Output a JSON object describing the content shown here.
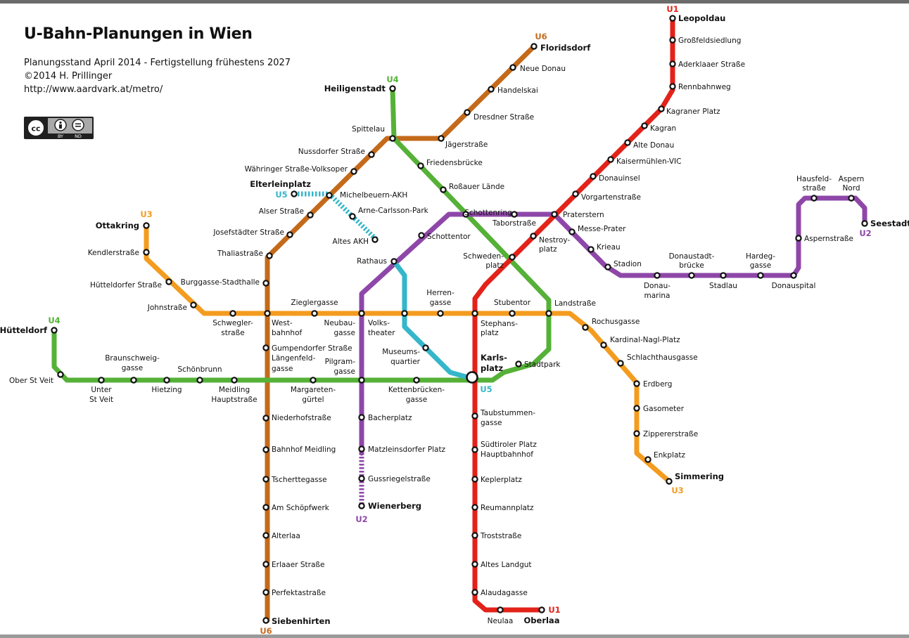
{
  "title": "U-Bahn-Planungen in Wien",
  "info_lines": [
    "Planungsstand April 2014 - Fertigstellung frühestens 2027",
    "©2014 H. Prillinger",
    "http://www.aardvark.at/metro/"
  ],
  "license": {
    "badge": [
      "cc",
      "by",
      "nd"
    ],
    "small_labels": [
      "BY",
      "ND"
    ]
  },
  "colors": {
    "U1": "#e32219",
    "U2": "#8e47a8",
    "U3": "#f39c1f",
    "U4": "#55b137",
    "U5": "#35b6c9",
    "U6": "#c46a1b"
  },
  "lines": [
    {
      "id": "U1",
      "stations": [
        "Leopoldau",
        "Großfeldsiedlung",
        "Aderklaaer Straße",
        "Rennbahnweg",
        "Kagraner Platz",
        "Kagran",
        "Alte Donau",
        "Kaisermühlen-VIC",
        "Donauinsel",
        "Vorgartenstraße",
        "Praterstern",
        "Nestroyplatz",
        "Schwedenplatz",
        "Stephansplatz",
        "Karlsplatz",
        "Taubstummengasse",
        "Südtiroler Platz Hauptbahnhof",
        "Keplerplatz",
        "Reumannplatz",
        "Troststraße",
        "Altes Landgut",
        "Alaudagasse",
        "Neulaa",
        "Oberlaa"
      ]
    },
    {
      "id": "U2",
      "stations": [
        "Seestadt",
        "Aspern Nord",
        "Hausfeldstraße",
        "Aspernstraße",
        "Donauspital",
        "Hardeggasse",
        "Stadlau",
        "Donaustadtbrücke",
        "Donaumarina",
        "Stadion",
        "Krieau",
        "Messe-Prater",
        "Praterstern",
        "Taborstraße",
        "Schottenring",
        "Schottentor",
        "Rathaus",
        "Volkstheater",
        "Neubaugasse",
        "Pilgramgasse",
        "Bacherplatz",
        "Matzleinsdorfer Platz",
        "Gussriegelstraße",
        "Wienerberg"
      ]
    },
    {
      "id": "U3",
      "stations": [
        "Ottakring",
        "Kendlerstraße",
        "Hütteldorfer Straße",
        "Johnstraße",
        "Schweglerstraße",
        "Westbahnhof",
        "Zieglergasse",
        "Neubaugasse",
        "Volkstheater",
        "Herrengasse",
        "Stephansplatz",
        "Stubentor",
        "Landstraße",
        "Rochusgasse",
        "Kardinal-Nagl-Platz",
        "Schlachthausgasse",
        "Erdberg",
        "Gasometer",
        "Zippererstraße",
        "Enkplatz",
        "Simmering"
      ]
    },
    {
      "id": "U4",
      "stations": [
        "Hütteldorf",
        "Ober St Veit",
        "Unter St Veit",
        "Braunschweiggasse",
        "Hietzing",
        "Schönbrunn",
        "Meidling Hauptstraße",
        "Längenfeldgasse",
        "Margaretengürtel",
        "Pilgramgasse",
        "Kettenbrückengasse",
        "Karlsplatz",
        "Stadtpark",
        "Landstraße",
        "Schwedenplatz",
        "Schottenring",
        "Roßauer Lände",
        "Friedensbrücke",
        "Spittelau",
        "Heiligenstadt"
      ]
    },
    {
      "id": "U5",
      "stations": [
        "Elterleinplatz",
        "Michelbeuern-AKH",
        "Arne-Carlsson-Park",
        "Altes AKH",
        "Rathaus",
        "Volkstheater",
        "Museumsquartier",
        "Karlsplatz"
      ]
    },
    {
      "id": "U6",
      "stations": [
        "Floridsdorf",
        "Neue Donau",
        "Handelskai",
        "Dresdner Straße",
        "Jägerstraße",
        "Spittelau",
        "Nussdorfer Straße",
        "Währinger Straße-Volksoper",
        "Michelbeuern-AKH",
        "Alser Straße",
        "Josefstädter Straße",
        "Thaliastraße",
        "Burggasse-Stadthalle",
        "Westbahnhof",
        "Gumpendorfer Straße",
        "Längenfeldgasse",
        "Niederhofstraße",
        "Bahnhof Meidling",
        "Tscherttegasse",
        "Am Schöpfwerk",
        "Alterlaa",
        "Erlaaer Straße",
        "Perfektastraße",
        "Siebenhirten"
      ]
    }
  ],
  "labels": {
    "leopoldau": "Leopoldau",
    "grossfeldsiedlung": "Großfeldsiedlung",
    "aderklaaer": "Aderklaaer Straße",
    "rennbahnweg": "Rennbahnweg",
    "kagraner_platz": "Kagraner Platz",
    "kagran": "Kagran",
    "alte_donau": "Alte Donau",
    "kaisermuehlen": "Kaisermühlen-VIC",
    "donauinsel": "Donauinsel",
    "vorgartenstrasse": "Vorgartenstraße",
    "praterstern": "Praterstern",
    "nestroy_1": "Nestroy-",
    "nestroy_2": "platz",
    "schweden_1": "Schweden-",
    "schweden_2": "platz",
    "stephans_1": "Stephans-",
    "stephans_2": "platz",
    "karls_1": "Karls-",
    "karls_2": "platz",
    "taubstummen_1": "Taubstummen-",
    "taubstummen_2": "gasse",
    "suedtiroler_1": "Südtiroler Platz",
    "suedtiroler_2": "Hauptbahnhof",
    "keplerplatz": "Keplerplatz",
    "reumannplatz": "Reumannplatz",
    "troststrasse": "Troststraße",
    "altes_landgut": "Altes Landgut",
    "alaudagasse": "Alaudagasse",
    "neulaa": "Neulaa",
    "oberlaa": "Oberlaa",
    "seestadt": "Seestadt",
    "aspern_1": "Aspern",
    "aspern_2": "Nord",
    "hausfeld_1": "Hausfeld-",
    "hausfeld_2": "straße",
    "aspernstrasse": "Aspernstraße",
    "donauspital": "Donauspital",
    "hardeg_1": "Hardeg-",
    "hardeg_2": "gasse",
    "stadlau": "Stadlau",
    "donaustadt_1": "Donaustadt-",
    "donaustadt_2": "brücke",
    "donaumarina_1": "Donau-",
    "donaumarina_2": "marina",
    "stadion": "Stadion",
    "krieau": "Krieau",
    "messe_prater": "Messe-Prater",
    "taborstrasse": "Taborstraße",
    "schottenring": "Schottenring",
    "schottentor": "Schottentor",
    "rathaus": "Rathaus",
    "volks_1": "Volks-",
    "volks_2": "theater",
    "neubau_1": "Neubau-",
    "neubau_2": "gasse",
    "pilgram_1": "Pilgram-",
    "pilgram_2": "gasse",
    "bacherplatz": "Bacherplatz",
    "matzleinsdorfer": "Matzleinsdorfer Platz",
    "gussriegel": "Gussriegelstraße",
    "wienerberg": "Wienerberg",
    "ottakring": "Ottakring",
    "kendlerstrasse": "Kendlerstraße",
    "huetteldorfer_strasse": "Hütteldorfer Straße",
    "johnstrasse": "Johnstraße",
    "schwegler_1": "Schwegler-",
    "schwegler_2": "straße",
    "west_1": "West-",
    "west_2": "bahnhof",
    "zieglergasse": "Zieglergasse",
    "herren_1": "Herren-",
    "herren_2": "gasse",
    "stubentor": "Stubentor",
    "landstrasse": "Landstraße",
    "rochusgasse": "Rochusgasse",
    "kardinal": "Kardinal-Nagl-Platz",
    "schlachthaus": "Schlachthausgasse",
    "erdberg": "Erdberg",
    "gasometer": "Gasometer",
    "zipperer": "Zippererstraße",
    "enkplatz": "Enkplatz",
    "simmering": "Simmering",
    "huetteldorf": "Hütteldorf",
    "ober_st_veit": "Ober St Veit",
    "unter_1": "Unter",
    "unter_2": "St Veit",
    "braunschweig_1": "Braunschweig-",
    "braunschweig_2": "gasse",
    "hietzing": "Hietzing",
    "schoenbrunn": "Schönbrunn",
    "meidling_1": "Meidling",
    "meidling_2": "Hauptstraße",
    "laengenfeld_1": "Längenfeld-",
    "laengenfeld_2": "gasse",
    "margareten_1": "Margareten-",
    "margareten_2": "gürtel",
    "kettenbruecken_1": "Kettenbrücken-",
    "kettenbruecken_2": "gasse",
    "stadtpark": "Stadtpark",
    "rossauer": "Roßauer Lände",
    "friedensbruecke": "Friedensbrücke",
    "spittelau": "Spittelau",
    "heiligenstadt": "Heiligenstadt",
    "elterleinplatz": "Elterleinplatz",
    "michelbeuern": "Michelbeuern-AKH",
    "arne_carlsson": "Arne-Carlsson-Park",
    "altes_akh": "Altes AKH",
    "museums_1": "Museums-",
    "museums_2": "quartier",
    "floridsdorf": "Floridsdorf",
    "neue_donau": "Neue Donau",
    "handelskai": "Handelskai",
    "dresdner": "Dresdner Straße",
    "jaegerstrasse": "Jägerstraße",
    "nussdorfer": "Nussdorfer Straße",
    "waehringer": "Währinger Straße-Volksoper",
    "alser": "Alser Straße",
    "josefstaedter": "Josefstädter Straße",
    "thaliastrasse": "Thaliastraße",
    "burggasse": "Burggasse-Stadthalle",
    "gumpendorfer": "Gumpendorfer Straße",
    "niederhof": "Niederhofstraße",
    "bahnhof_meidling": "Bahnhof Meidling",
    "tscherttegasse": "Tscherttegasse",
    "am_schoepfwerk": "Am Schöpfwerk",
    "alterlaa": "Alterlaa",
    "erlaaer": "Erlaaer Straße",
    "perfekta": "Perfektastraße",
    "siebenhirten": "Siebenhirten"
  },
  "line_labels": {
    "u1": "U1",
    "u2": "U2",
    "u3": "U3",
    "u4": "U4",
    "u5": "U5",
    "u6": "U6"
  }
}
